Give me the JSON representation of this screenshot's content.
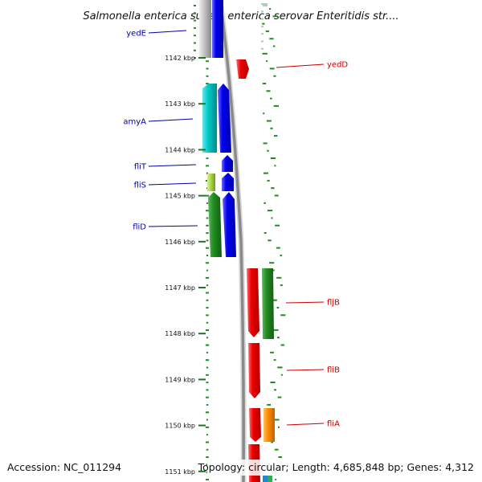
{
  "title": "Salmonella enterica subsp. enterica serovar Enteritidis str....",
  "footer": {
    "accession": "Accession: NC_011294",
    "summary": "Topology: circular; Length: 4,685,848 bp; Genes: 4,312"
  },
  "axis": {
    "unit": "kbp",
    "ticks": [
      {
        "label": "1142 kbp"
      },
      {
        "label": "1143 kbp"
      },
      {
        "label": "1144 kbp"
      },
      {
        "label": "1145 kbp"
      },
      {
        "label": "1146 kbp"
      },
      {
        "label": "1147 kbp"
      },
      {
        "label": "1148 kbp"
      },
      {
        "label": "1149 kbp"
      },
      {
        "label": "1150 kbp"
      },
      {
        "label": "1151 kbp"
      }
    ]
  },
  "genes": {
    "left": [
      {
        "label": "yedE",
        "color": "#0000aa"
      },
      {
        "label": "amyA",
        "color": "#0000aa"
      },
      {
        "label": "fliT",
        "color": "#0000aa"
      },
      {
        "label": "fliS",
        "color": "#0000aa"
      },
      {
        "label": "fliD",
        "color": "#0000aa"
      }
    ],
    "right": [
      {
        "label": "yedD",
        "color": "#cc0000"
      },
      {
        "label": "fljB",
        "color": "#cc0000"
      },
      {
        "label": "fliB",
        "color": "#cc0000"
      },
      {
        "label": "fliA",
        "color": "#cc0000"
      }
    ]
  },
  "colors": {
    "backbone": "#8a8a8a",
    "gc_skew": "#228b22",
    "reverse_strand": "#0000ee",
    "forward_strand": "#ee0000"
  }
}
